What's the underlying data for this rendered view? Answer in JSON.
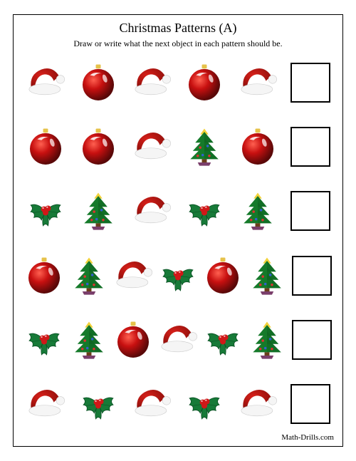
{
  "title": "Christmas Patterns (A)",
  "instruction": "Draw or write what the next object in each pattern should be.",
  "footer": "Math-Drills.com",
  "icon_size": 58,
  "colors": {
    "hat_red": "#d8201a",
    "hat_dark": "#8b0e0a",
    "white": "#f5f5f5",
    "shadow": "#c9c9c9",
    "ball_red": "#c81010",
    "ball_hi": "#ff6050",
    "ball_gold": "#e6c24a",
    "tree_green": "#157a2a",
    "tree_dark": "#0c5a1c",
    "trunk": "#6b3e1a",
    "pot": "#7a3e6a",
    "star": "#f2d23a",
    "orn_red": "#e03030",
    "orn_blue": "#3060d0",
    "holly_green": "#177a38",
    "holly_dark": "#0a5224",
    "berry": "#d01818"
  },
  "rows": [
    [
      "hat",
      "ball",
      "hat",
      "ball",
      "hat"
    ],
    [
      "ball",
      "ball",
      "hat",
      "tree",
      "ball"
    ],
    [
      "holly",
      "tree",
      "hat",
      "holly",
      "tree"
    ],
    [
      "ball",
      "tree",
      "hat",
      "holly",
      "ball",
      "tree"
    ],
    [
      "holly",
      "tree",
      "ball",
      "hat",
      "holly",
      "tree"
    ],
    [
      "hat",
      "holly",
      "hat",
      "holly",
      "hat"
    ]
  ]
}
